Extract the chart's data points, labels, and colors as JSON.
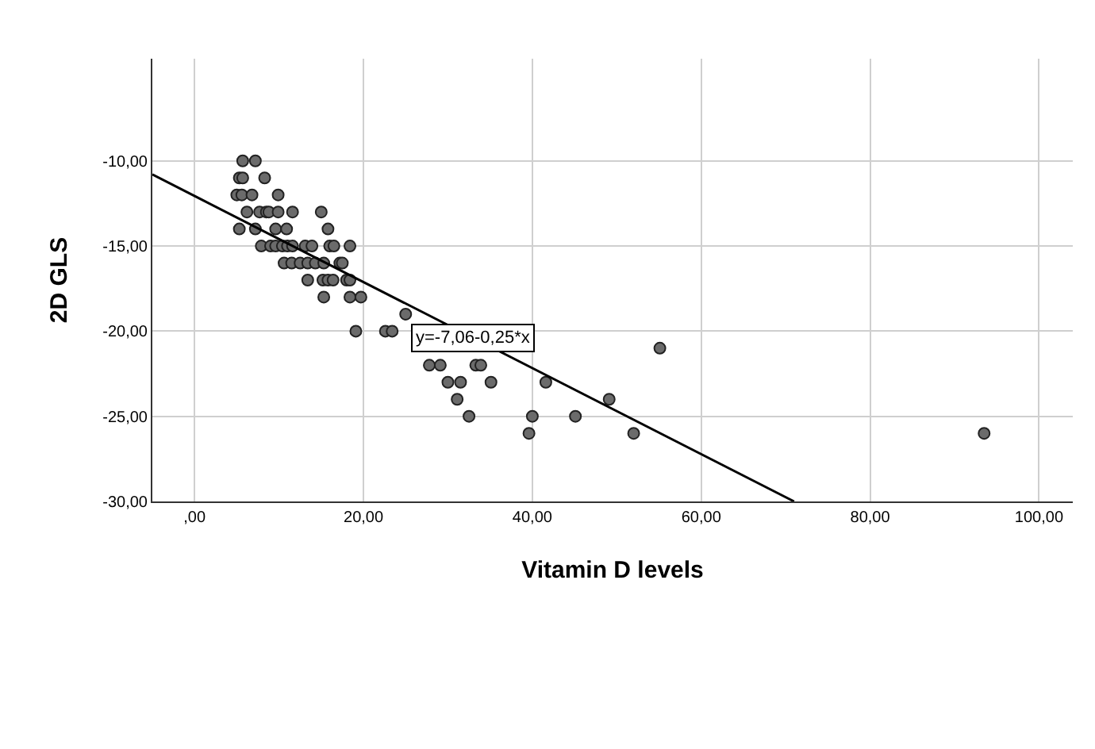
{
  "chart_data": {
    "type": "scatter",
    "xlabel": "Vitamin D levels",
    "ylabel": "2D GLS",
    "xlim": [
      -5,
      104
    ],
    "ylim": [
      -30,
      -4
    ],
    "xticks": [
      {
        "value": 0,
        "label": ",00"
      },
      {
        "value": 20,
        "label": "20,00"
      },
      {
        "value": 40,
        "label": "40,00"
      },
      {
        "value": 60,
        "label": "60,00"
      },
      {
        "value": 80,
        "label": "80,00"
      },
      {
        "value": 100,
        "label": "100,00"
      }
    ],
    "yticks": [
      {
        "value": -10,
        "label": "-10,00"
      },
      {
        "value": -15,
        "label": "-15,00"
      },
      {
        "value": -20,
        "label": "-20,00"
      },
      {
        "value": -25,
        "label": "-25,00"
      },
      {
        "value": -30,
        "label": "-30,00"
      }
    ],
    "grid": true,
    "marker": "circle",
    "annotations": [
      {
        "text": "y=-7,06-0,25*x",
        "x": 33,
        "y": -20.4
      }
    ],
    "series": [
      {
        "color": "#6b6b6b",
        "x": [
          5.7,
          7.2,
          5.3,
          5.7,
          8.3,
          5.0,
          5.6,
          6.8,
          9.9,
          6.2,
          7.7,
          8.5,
          8.8,
          9.9,
          11.6,
          15.0,
          5.3,
          7.2,
          9.6,
          10.9,
          15.8,
          7.9,
          9.0,
          9.6,
          10.4,
          11.0,
          11.6,
          13.1,
          13.9,
          16.0,
          16.5,
          18.4,
          10.6,
          11.5,
          12.5,
          13.4,
          14.3,
          15.3,
          17.2,
          17.5,
          13.4,
          15.2,
          15.8,
          16.4,
          18.0,
          18.4,
          15.3,
          18.4,
          19.7,
          25.0,
          19.1,
          22.6,
          23.4,
          27.8,
          29.1,
          33.3,
          33.9,
          30.0,
          31.5,
          35.1,
          41.6,
          31.1,
          49.1,
          32.5,
          40.0,
          45.1,
          39.6,
          52.0,
          55.1,
          93.5
        ],
        "values": [
          -10,
          -10,
          -11,
          -11,
          -11,
          -12,
          -12,
          -12,
          -12,
          -13,
          -13,
          -13,
          -13,
          -13,
          -13,
          -13,
          -14,
          -14,
          -14,
          -14,
          -14,
          -15,
          -15,
          -15,
          -15,
          -15,
          -15,
          -15,
          -15,
          -15,
          -15,
          -15,
          -16,
          -16,
          -16,
          -16,
          -16,
          -16,
          -16,
          -16,
          -17,
          -17,
          -17,
          -17,
          -17,
          -17,
          -18,
          -18,
          -18,
          -19,
          -20,
          -20,
          -20,
          -22,
          -22,
          -22,
          -22,
          -23,
          -23,
          -23,
          -23,
          -24,
          -24,
          -25,
          -25,
          -25,
          -26,
          -26,
          -21,
          -26
        ]
      },
      {
        "type": "line",
        "color": "#000000",
        "marker": "none",
        "line_style": "solid",
        "x": [
          -5,
          71
        ],
        "values": [
          -10.8,
          -30
        ]
      }
    ]
  }
}
